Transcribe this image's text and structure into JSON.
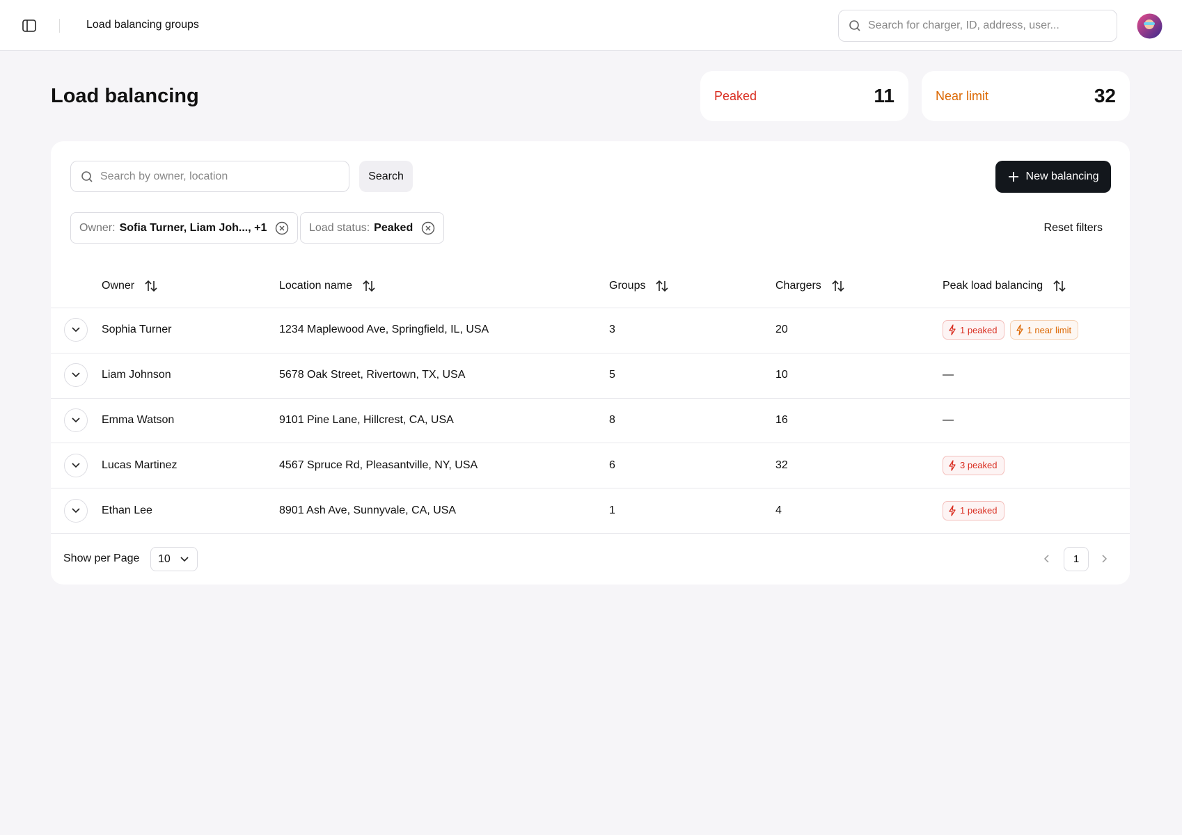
{
  "header": {
    "title": "Load balancing groups",
    "search_placeholder": "Search for charger, ID, address, user..."
  },
  "page_title": "Load balancing",
  "stats": [
    {
      "label": "Peaked",
      "value": 11,
      "color": "#d92d20"
    },
    {
      "label": "Near limit",
      "value": 32,
      "color": "#dc6803"
    }
  ],
  "toolbar": {
    "search_placeholder": "Search by owner, location",
    "search_button": "Search",
    "new_button": "New balancing"
  },
  "filters": [
    {
      "label": "Owner:",
      "value": "Sofia Turner, Liam Joh..., +1"
    },
    {
      "label": "Load status:",
      "value": "Peaked"
    }
  ],
  "reset_filters": "Reset filters",
  "table": {
    "columns": [
      "Owner",
      "Location name",
      "Groups",
      "Chargers",
      "Peak load balancing"
    ],
    "rows": [
      {
        "owner": "Sophia Turner",
        "location": "1234 Maplewood Ave, Springfield, IL, USA",
        "groups": 3,
        "chargers": 20,
        "peak": [
          {
            "label": "1 peaked",
            "color": "#d92d20"
          },
          {
            "label": "1 near limit",
            "color": "#dc6803"
          }
        ]
      },
      {
        "owner": "Liam Johnson",
        "location": "5678 Oak Street, Rivertown, TX, USA",
        "groups": 5,
        "chargers": 10,
        "peak": "—"
      },
      {
        "owner": "Emma Watson",
        "location": "9101 Pine Lane, Hillcrest, CA, USA",
        "groups": 8,
        "chargers": 16,
        "peak": "—"
      },
      {
        "owner": "Lucas Martinez",
        "location": "4567 Spruce Rd, Pleasantville, NY, USA",
        "groups": 6,
        "chargers": 32,
        "peak": [
          {
            "label": "3 peaked",
            "color": "#d92d20"
          }
        ]
      },
      {
        "owner": "Ethan Lee",
        "location": "8901 Ash Ave, Sunnyvale, CA, USA",
        "groups": 1,
        "chargers": 4,
        "peak": [
          {
            "label": "1 peaked",
            "color": "#d92d20"
          }
        ]
      }
    ]
  },
  "footer": {
    "per_page_label": "Show per Page",
    "per_page": 10,
    "page": 1
  }
}
